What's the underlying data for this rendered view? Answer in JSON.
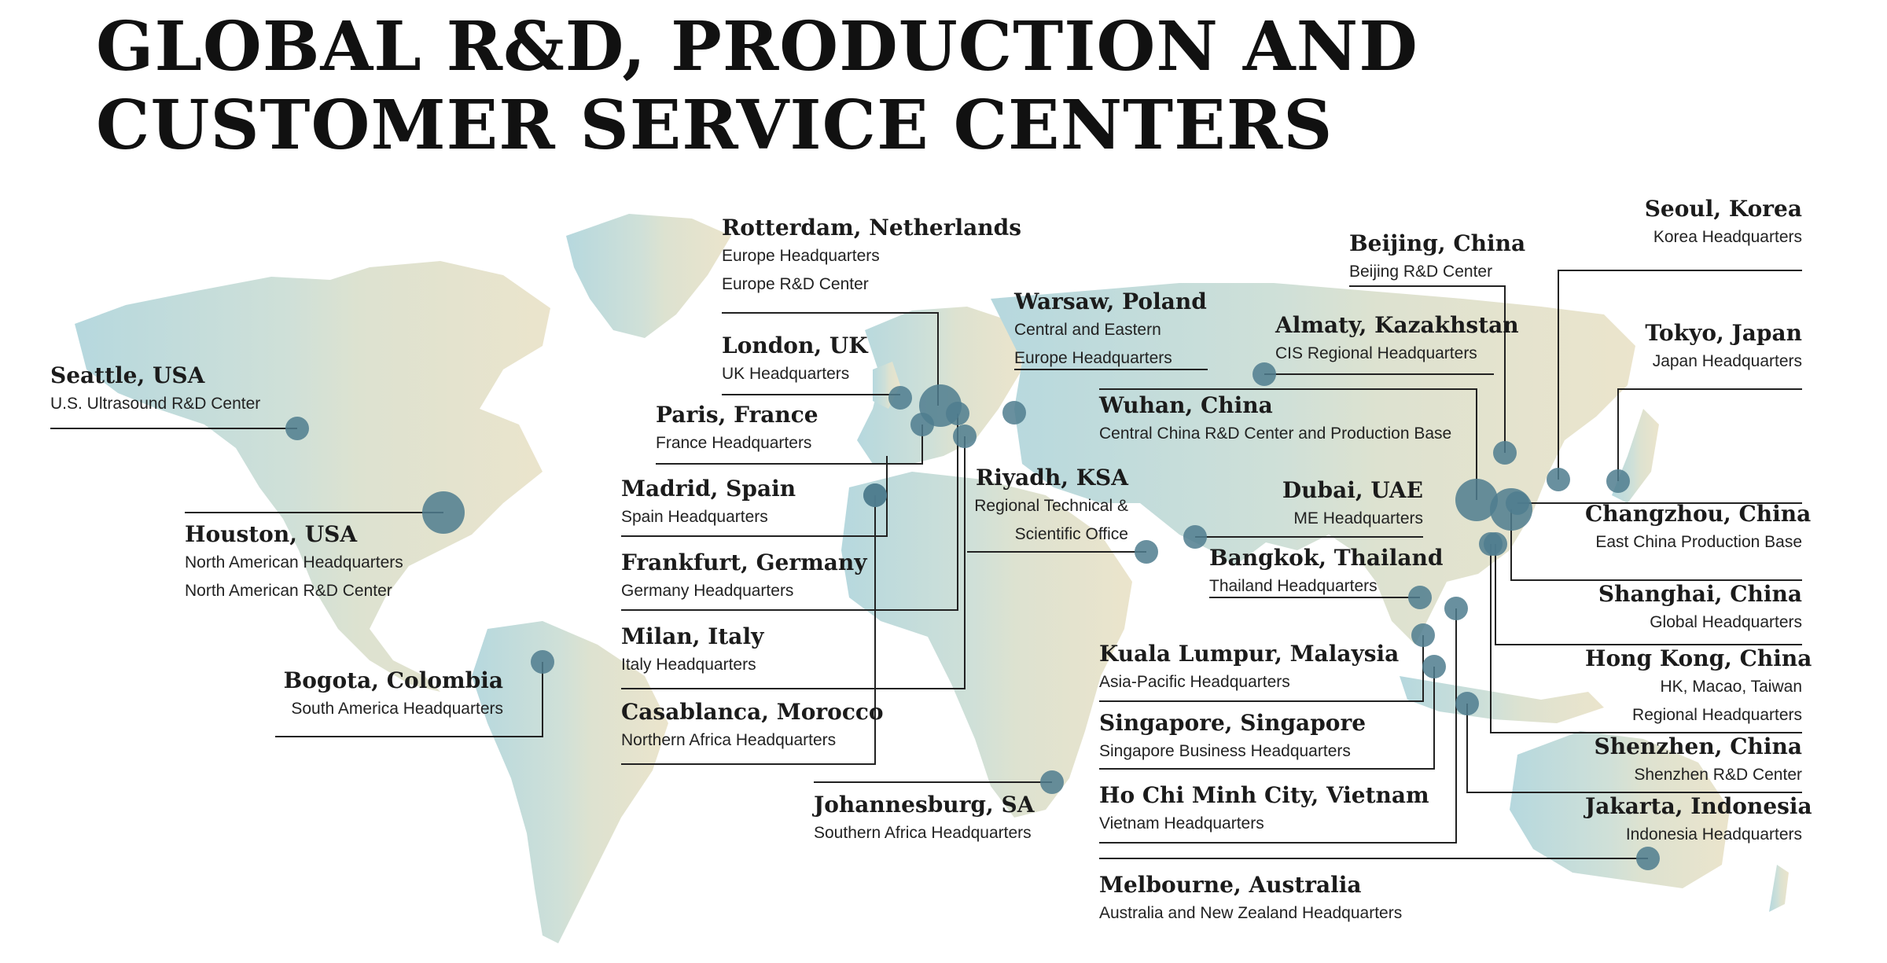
{
  "title": {
    "line1": "GLOBAL R&D, PRODUCTION AND",
    "line2": "CUSTOMER SERVICE CENTERS"
  },
  "colors": {
    "dot": "#4f7c8e",
    "line": "#222222",
    "land_west": "#bcd9de",
    "land_east": "#e8e2cc"
  },
  "locations": [
    {
      "key": "seattle",
      "name": "Seattle, USA",
      "lines": [
        "U.S. Ultrasound R&D Center"
      ],
      "size": "small"
    },
    {
      "key": "houston",
      "name": "Houston, USA",
      "lines": [
        "North American Headquarters",
        "North American R&D Center"
      ],
      "size": "large"
    },
    {
      "key": "bogota",
      "name": "Bogota, Colombia",
      "lines": [
        "South America Headquarters"
      ],
      "size": "small"
    },
    {
      "key": "rotterdam",
      "name": "Rotterdam, Netherlands",
      "lines": [
        "Europe Headquarters",
        "Europe R&D Center"
      ],
      "size": "large"
    },
    {
      "key": "london",
      "name": "London, UK",
      "lines": [
        "UK Headquarters"
      ],
      "size": "small"
    },
    {
      "key": "paris",
      "name": "Paris, France",
      "lines": [
        "France Headquarters"
      ],
      "size": "small"
    },
    {
      "key": "madrid",
      "name": "Madrid, Spain",
      "lines": [
        "Spain Headquarters"
      ],
      "size": "small"
    },
    {
      "key": "frankfurt",
      "name": "Frankfurt, Germany",
      "lines": [
        "Germany Headquarters"
      ],
      "size": "small"
    },
    {
      "key": "milan",
      "name": "Milan, Italy",
      "lines": [
        "Italy Headquarters"
      ],
      "size": "small"
    },
    {
      "key": "casablanca",
      "name": "Casablanca, Morocco",
      "lines": [
        "Northern Africa Headquarters"
      ],
      "size": "small"
    },
    {
      "key": "johannesburg",
      "name": "Johannesburg, SA",
      "lines": [
        "Southern Africa Headquarters"
      ],
      "size": "small"
    },
    {
      "key": "warsaw",
      "name": "Warsaw, Poland",
      "lines": [
        "Central and Eastern",
        "Europe Headquarters"
      ],
      "size": "small"
    },
    {
      "key": "riyadh",
      "name": "Riyadh, KSA",
      "lines": [
        "Regional Technical &",
        "Scientific Office"
      ],
      "size": "small"
    },
    {
      "key": "almaty",
      "name": "Almaty, Kazakhstan",
      "lines": [
        "CIS Regional Headquarters"
      ],
      "size": "small"
    },
    {
      "key": "wuhan",
      "name": "Wuhan, China",
      "lines": [
        "Central China R&D Center and Production Base"
      ],
      "size": "large"
    },
    {
      "key": "dubai",
      "name": "Dubai, UAE",
      "lines": [
        "ME Headquarters"
      ],
      "size": "small"
    },
    {
      "key": "bangkok",
      "name": "Bangkok, Thailand",
      "lines": [
        "Thailand Headquarters"
      ],
      "size": "small"
    },
    {
      "key": "kualalumpur",
      "name": "Kuala Lumpur, Malaysia",
      "lines": [
        "Asia-Pacific Headquarters"
      ],
      "size": "small"
    },
    {
      "key": "singapore",
      "name": "Singapore, Singapore",
      "lines": [
        "Singapore Business Headquarters"
      ],
      "size": "small"
    },
    {
      "key": "hochiminh",
      "name": "Ho Chi Minh City, Vietnam",
      "lines": [
        "Vietnam Headquarters"
      ],
      "size": "small"
    },
    {
      "key": "melbourne",
      "name": "Melbourne, Australia",
      "lines": [
        "Australia and New Zealand Headquarters"
      ],
      "size": "small"
    },
    {
      "key": "beijing",
      "name": "Beijing, China",
      "lines": [
        "Beijing R&D Center"
      ],
      "size": "small"
    },
    {
      "key": "seoul",
      "name": "Seoul, Korea",
      "lines": [
        "Korea Headquarters"
      ],
      "size": "small"
    },
    {
      "key": "tokyo",
      "name": "Tokyo, Japan",
      "lines": [
        "Japan Headquarters"
      ],
      "size": "small"
    },
    {
      "key": "changzhou",
      "name": "Changzhou, China",
      "lines": [
        "East China Production Base"
      ],
      "size": "small"
    },
    {
      "key": "shanghai",
      "name": "Shanghai, China",
      "lines": [
        "Global Headquarters"
      ],
      "size": "large"
    },
    {
      "key": "hongkong",
      "name": "Hong Kong, China",
      "lines": [
        "HK, Macao, Taiwan",
        "Regional Headquarters"
      ],
      "size": "small"
    },
    {
      "key": "shenzhen",
      "name": "Shenzhen, China",
      "lines": [
        "Shenzhen R&D Center"
      ],
      "size": "small"
    },
    {
      "key": "jakarta",
      "name": "Jakarta, Indonesia",
      "lines": [
        "Indonesia Headquarters"
      ],
      "size": "small"
    }
  ]
}
